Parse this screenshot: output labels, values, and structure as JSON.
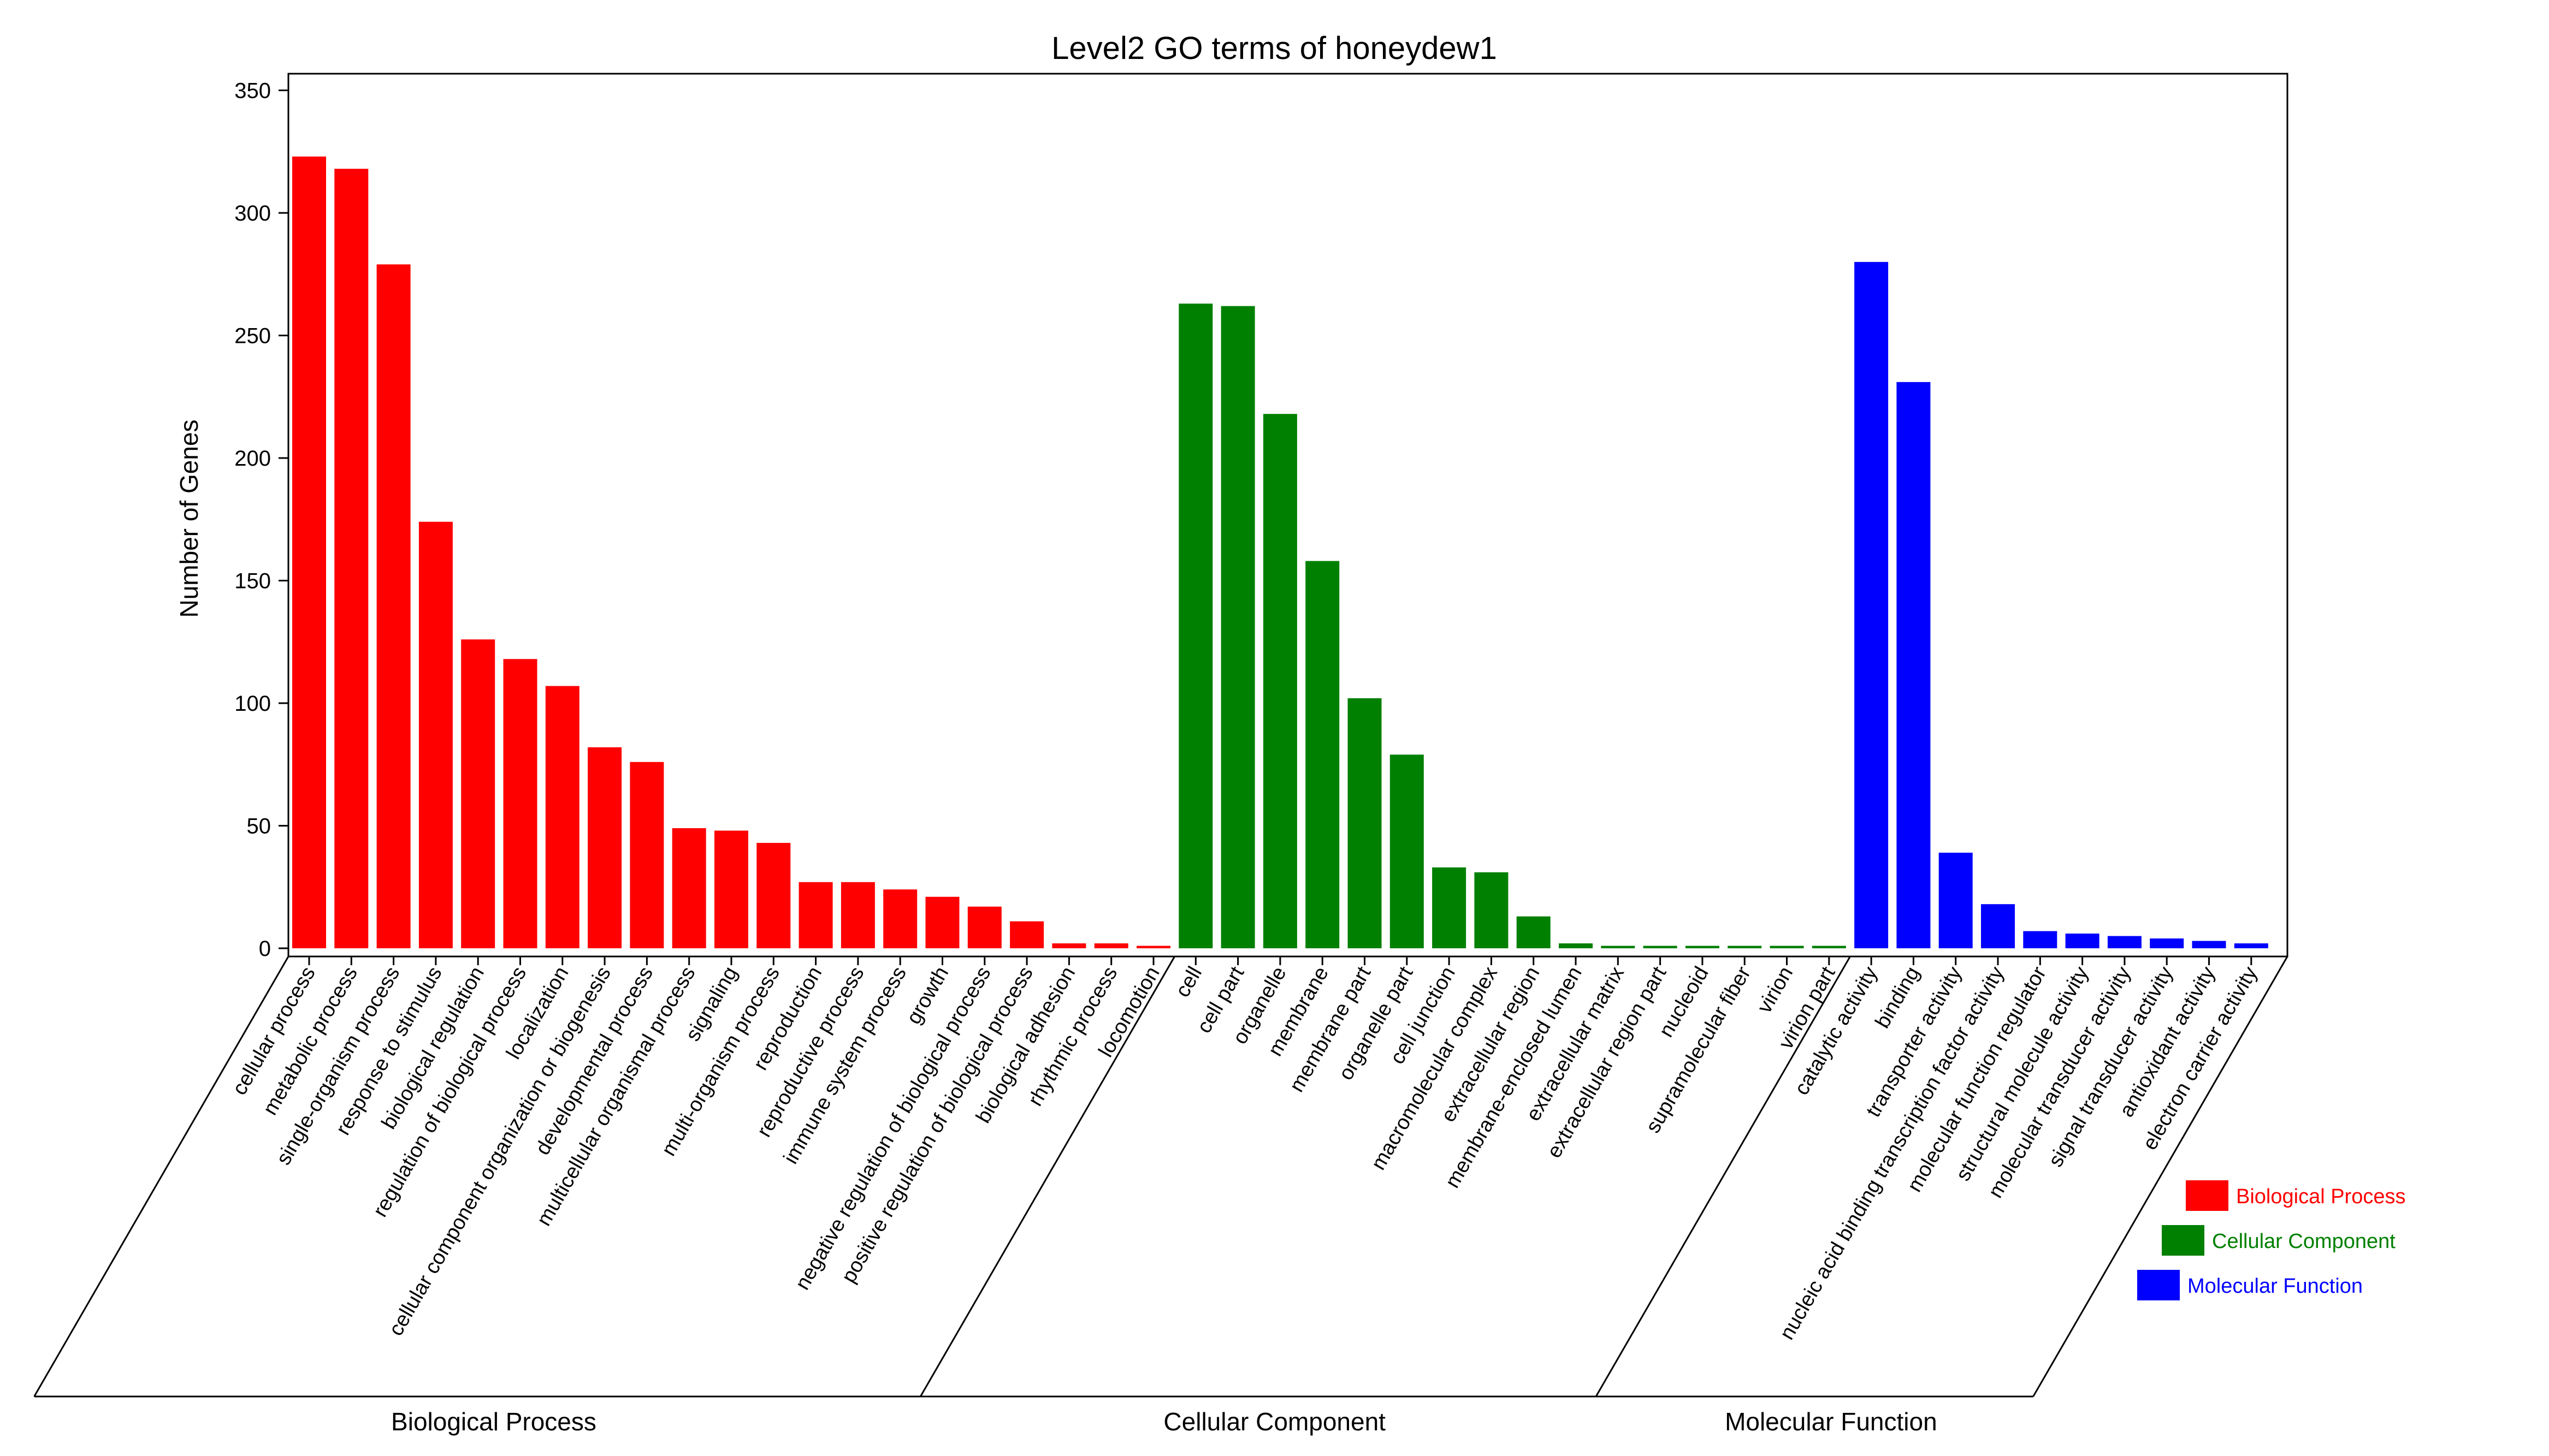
{
  "chart_data": {
    "type": "bar",
    "title": "Level2 GO terms of honeydew1",
    "ylabel": "Number of Genes",
    "ylim": [
      0,
      355
    ],
    "yticks": [
      0,
      50,
      100,
      150,
      200,
      250,
      300,
      350
    ],
    "legend_position": "bottom-right",
    "groups": [
      {
        "name": "Biological Process",
        "color": "#ff0000",
        "categories": [
          "cellular process",
          "metabolic process",
          "single-organism process",
          "response to stimulus",
          "biological regulation",
          "regulation of biological process",
          "localization",
          "cellular component organization or biogenesis",
          "developmental process",
          "multicellular organismal process",
          "signaling",
          "multi-organism process",
          "reproduction",
          "reproductive process",
          "immune system process",
          "growth",
          "negative regulation of biological process",
          "positive regulation of biological process",
          "biological adhesion",
          "rhythmic process",
          "locomotion"
        ],
        "values": [
          323,
          318,
          279,
          174,
          126,
          118,
          107,
          82,
          76,
          49,
          48,
          43,
          27,
          27,
          24,
          21,
          17,
          11,
          2,
          2,
          1
        ]
      },
      {
        "name": "Cellular Component",
        "color": "#008000",
        "categories": [
          "cell",
          "cell part",
          "organelle",
          "membrane",
          "membrane part",
          "organelle part",
          "cell junction",
          "macromolecular complex",
          "extracellular region",
          "membrane-enclosed lumen",
          "extracellular matrix",
          "extracellular region part",
          "nucleoid",
          "supramolecular fiber",
          "virion",
          "virion part"
        ],
        "values": [
          263,
          262,
          218,
          158,
          102,
          79,
          33,
          31,
          13,
          2,
          1,
          1,
          1,
          1,
          1,
          1
        ]
      },
      {
        "name": "Molecular Function",
        "color": "#0000ff",
        "categories": [
          "catalytic activity",
          "binding",
          "transporter activity",
          "nucleic acid binding transcription factor activity",
          "molecular function regulator",
          "structural molecule activity",
          "molecular transducer activity",
          "signal transducer activity",
          "antioxidant activity",
          "electron carrier activity"
        ],
        "values": [
          280,
          231,
          39,
          18,
          7,
          6,
          5,
          4,
          3,
          2
        ]
      }
    ]
  }
}
